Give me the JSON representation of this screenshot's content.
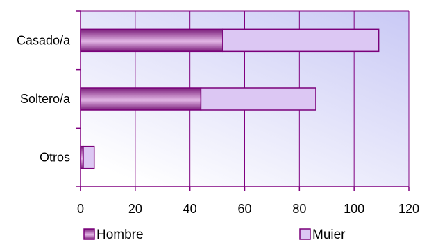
{
  "chart_data": {
    "type": "bar",
    "orientation": "horizontal",
    "stacked": true,
    "categories": [
      "Casado/a",
      "Soltero/a",
      "Otros"
    ],
    "series": [
      {
        "name": "Hombre",
        "values": [
          52,
          44,
          1
        ]
      },
      {
        "name": "Muier",
        "values": [
          57,
          42,
          4
        ]
      }
    ],
    "xlim": [
      0,
      120
    ],
    "xticks": [
      0,
      20,
      40,
      60,
      80,
      100,
      120
    ],
    "grid": "vertical",
    "legend": "bottom",
    "colors": {
      "hombre_dark": "#7a1d7a",
      "hombre_light": "#e3b7e6",
      "muier_fill": "#dcc7f3",
      "plot_bg_top": "#c9c9f5",
      "plot_bg_bottom": "#ffffff",
      "axis": "#800080",
      "edge": "#7a007a"
    }
  }
}
